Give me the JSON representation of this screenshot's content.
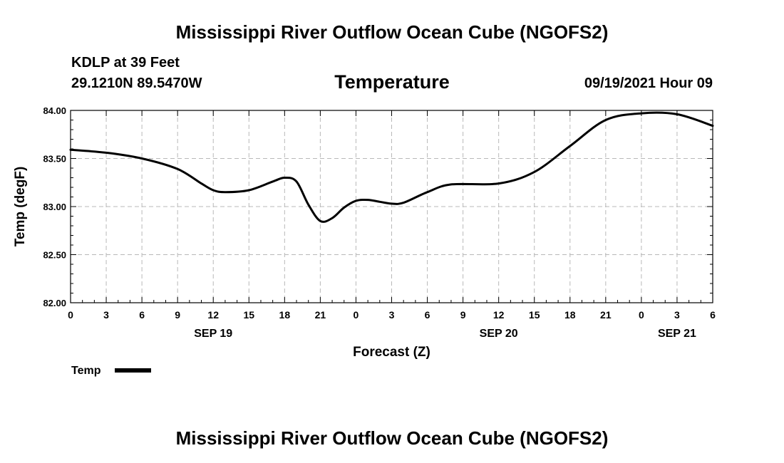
{
  "header": {
    "title": "Mississippi River Outflow Ocean Cube (NGOFS2)",
    "station": "KDLP at 39 Feet",
    "coords": "29.1210N  89.5470W",
    "parameter": "Temperature",
    "datetime": "09/19/2021 Hour 09"
  },
  "footer": {
    "title": "Mississippi River Outflow Ocean Cube (NGOFS2)"
  },
  "chart_data": {
    "type": "line",
    "title": "Temperature",
    "xlabel": "Forecast (Z)",
    "ylabel": "Temp (degF)",
    "xlim": [
      0,
      54
    ],
    "ylim": [
      82.0,
      84.0
    ],
    "y_ticks": [
      "82.00",
      "82.50",
      "83.00",
      "83.50",
      "84.00"
    ],
    "x_tick_labels": [
      "0",
      "3",
      "6",
      "9",
      "12",
      "15",
      "18",
      "21",
      "0",
      "3",
      "6",
      "9",
      "12",
      "15",
      "18",
      "21",
      "0",
      "3",
      "6"
    ],
    "date_labels": [
      {
        "label": "SEP 19",
        "x": 12
      },
      {
        "label": "SEP 20",
        "x": 36
      },
      {
        "label": "SEP 21",
        "x": 51
      }
    ],
    "grid": true,
    "legend": "bottom-left",
    "series": [
      {
        "name": "Temp",
        "color": "#000000",
        "x": [
          0,
          3,
          6,
          9,
          11,
          12,
          13,
          15,
          17,
          18,
          19,
          20,
          21,
          22,
          23,
          24,
          25,
          26,
          27,
          28,
          30,
          32,
          36,
          39,
          42,
          45,
          48,
          51,
          54
        ],
        "values": [
          83.59,
          83.56,
          83.5,
          83.39,
          83.24,
          83.17,
          83.15,
          83.17,
          83.26,
          83.3,
          83.26,
          83.02,
          82.85,
          82.88,
          82.99,
          83.06,
          83.07,
          83.05,
          83.03,
          83.04,
          83.15,
          83.23,
          83.24,
          83.36,
          83.63,
          83.9,
          83.97,
          83.96,
          83.84
        ]
      }
    ]
  }
}
